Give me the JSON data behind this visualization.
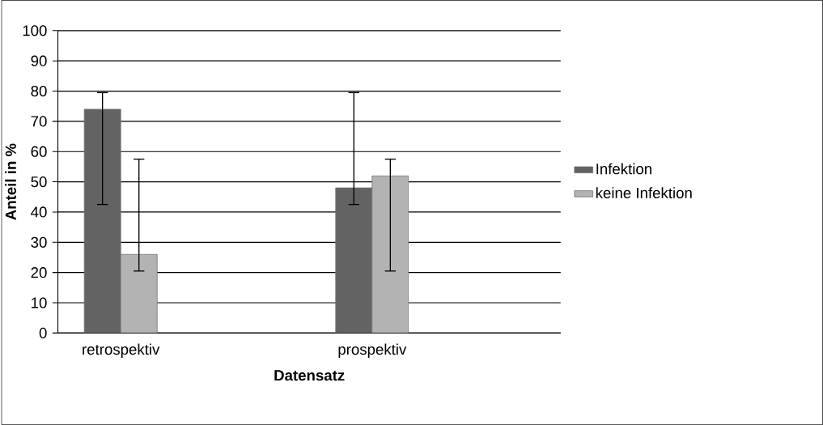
{
  "chart_data": {
    "type": "bar",
    "xlabel": "Datensatz",
    "ylabel": "Anteil in %",
    "categories": [
      "retrospektiv",
      "prospektiv"
    ],
    "series": [
      {
        "name": "Infektion",
        "color": "#636363",
        "values": [
          74,
          48
        ],
        "errors": [
          [
            42.5,
            79.5
          ],
          [
            42.5,
            79.5
          ]
        ]
      },
      {
        "name": "keine Infektion",
        "color": "#b3b3b3",
        "values": [
          26,
          52
        ],
        "errors": [
          [
            20.5,
            57.5
          ],
          [
            20.5,
            57.5
          ]
        ]
      }
    ],
    "ylim": [
      0,
      100
    ],
    "yticks": [
      0,
      10,
      20,
      30,
      40,
      50,
      60,
      70,
      80,
      90,
      100
    ],
    "grid": "y",
    "legend": "right"
  }
}
